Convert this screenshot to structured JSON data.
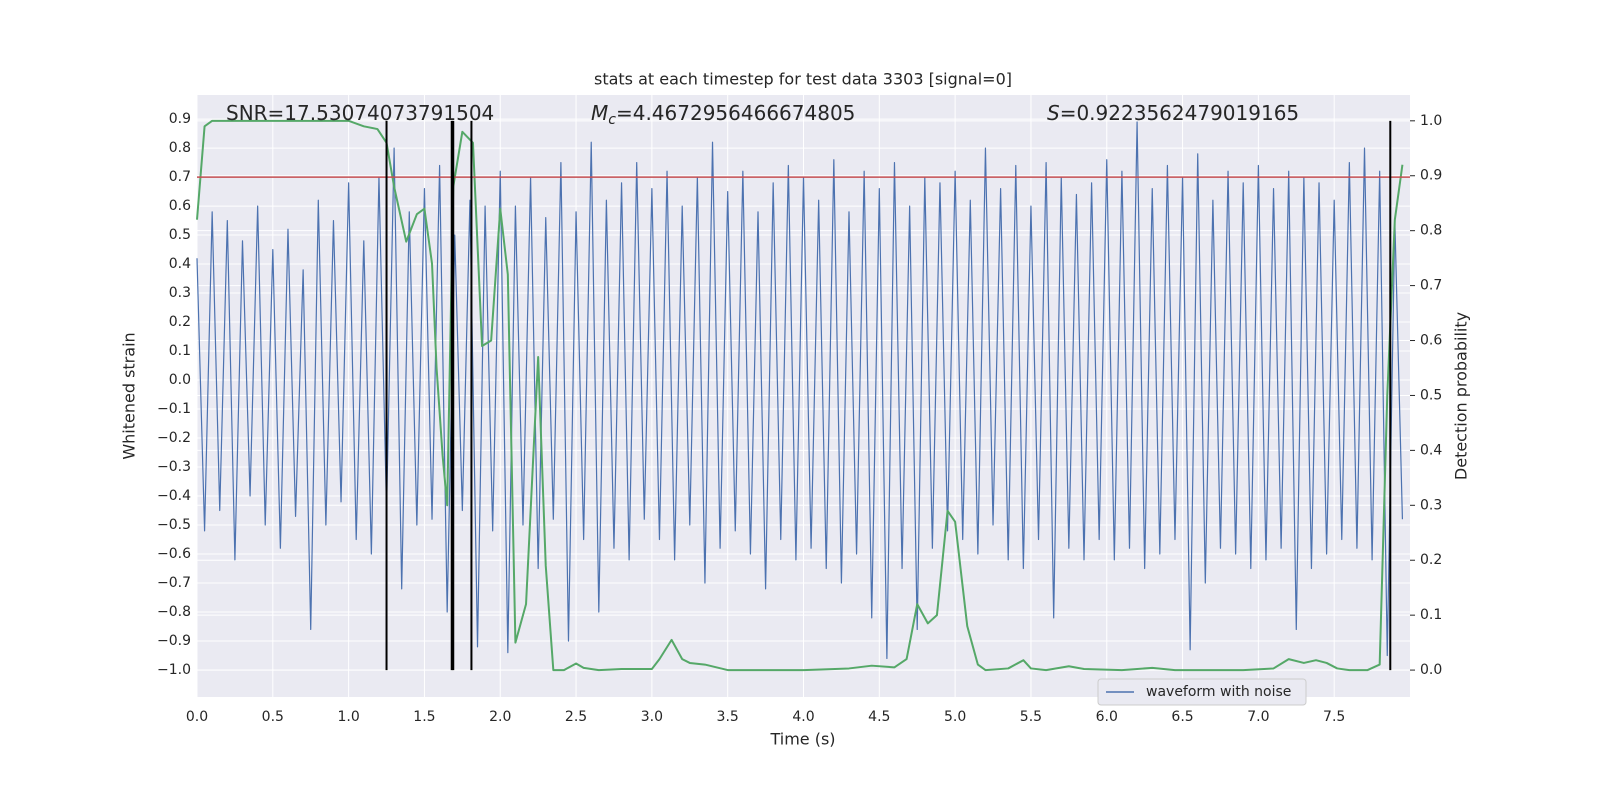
{
  "chart_data": {
    "type": "line",
    "title": "stats at each timestep for test data 3303 [signal=0]",
    "x_label": "Time (s)",
    "y_label": "Whitened strain",
    "y2_label": "Detection probability",
    "annotations": [
      {
        "text": "SNR=17.53074073791504"
      },
      {
        "symbol": "M",
        "subscript": "c",
        "text": "=4.4672956466674805"
      },
      {
        "symbol": "S",
        "text": "=0.9223562479019165"
      }
    ],
    "xlim": [
      0,
      8.0
    ],
    "ylim": [
      -1.093,
      0.983
    ],
    "y2lim": [
      -0.049,
      1.047
    ],
    "grid": true,
    "legend": "lower right",
    "xticks": [
      {
        "value": 0,
        "label": "0.0"
      },
      0.5,
      {
        "value": 1,
        "label": "1.0"
      },
      1.5,
      {
        "value": 2,
        "label": "2.0"
      },
      2.5,
      {
        "value": 3,
        "label": "3.0"
      },
      3.5,
      {
        "value": 4,
        "label": "4.0"
      },
      4.5,
      {
        "value": 5,
        "label": "5.0"
      },
      5.5,
      {
        "value": 6,
        "label": "6.0"
      },
      6.5,
      {
        "value": 7,
        "label": "7.0"
      },
      7.5
    ],
    "yticks": [
      0.9,
      0.8,
      0.7,
      0.6,
      0.5,
      0.4,
      0.3,
      0.2,
      0.1,
      {
        "value": 0,
        "label": "0.0"
      },
      {
        "value": -0.1,
        "label": "−0.1"
      },
      {
        "value": -0.2,
        "label": "−0.2"
      },
      {
        "value": -0.3,
        "label": "−0.3"
      },
      {
        "value": -0.4,
        "label": "−0.4"
      },
      {
        "value": -0.5,
        "label": "−0.5"
      },
      {
        "value": -0.6,
        "label": "−0.6"
      },
      {
        "value": -0.7,
        "label": "−0.7"
      },
      {
        "value": -0.8,
        "label": "−0.8"
      },
      {
        "value": -0.9,
        "label": "−0.9"
      },
      {
        "value": -1,
        "label": "−1.0"
      }
    ],
    "y2ticks": [
      {
        "value": 0,
        "label": "0.0"
      },
      0.1,
      0.2,
      0.3,
      0.4,
      0.5,
      0.6,
      0.7,
      0.8,
      0.9,
      {
        "value": 1,
        "label": "1.0"
      }
    ],
    "hlines": [
      {
        "value": 0.7,
        "color": "#c44e52"
      }
    ],
    "vlines": {
      "color": "#000000",
      "values": [
        1.25,
        1.68,
        1.69,
        1.81,
        7.87
      ],
      "from": 0,
      "to": 1.0
    },
    "series": [
      {
        "name": "waveform with noise",
        "color": "#4c72b0",
        "axis": "y",
        "x": [
          0.0,
          0.05,
          0.1,
          0.15,
          0.2,
          0.25,
          0.3,
          0.35,
          0.4,
          0.45,
          0.5,
          0.55,
          0.6,
          0.65,
          0.7,
          0.75,
          0.8,
          0.85,
          0.9,
          0.95,
          1.0,
          1.05,
          1.1,
          1.15,
          1.2,
          1.25,
          1.3,
          1.35,
          1.4,
          1.45,
          1.5,
          1.55,
          1.6,
          1.65,
          1.7,
          1.75,
          1.8,
          1.85,
          1.9,
          1.95,
          2.0,
          2.05,
          2.1,
          2.15,
          2.2,
          2.25,
          2.3,
          2.35,
          2.4,
          2.45,
          2.5,
          2.55,
          2.6,
          2.65,
          2.7,
          2.75,
          2.8,
          2.85,
          2.9,
          2.95,
          3.0,
          3.05,
          3.1,
          3.15,
          3.2,
          3.25,
          3.3,
          3.35,
          3.4,
          3.45,
          3.5,
          3.55,
          3.6,
          3.65,
          3.7,
          3.75,
          3.8,
          3.85,
          3.9,
          3.95,
          4.0,
          4.05,
          4.1,
          4.15,
          4.2,
          4.25,
          4.3,
          4.35,
          4.4,
          4.45,
          4.5,
          4.55,
          4.6,
          4.65,
          4.7,
          4.75,
          4.8,
          4.85,
          4.9,
          4.95,
          5.0,
          5.05,
          5.1,
          5.15,
          5.2,
          5.25,
          5.3,
          5.35,
          5.4,
          5.45,
          5.5,
          5.55,
          5.6,
          5.65,
          5.7,
          5.75,
          5.8,
          5.85,
          5.9,
          5.95,
          6.0,
          6.05,
          6.1,
          6.15,
          6.2,
          6.25,
          6.3,
          6.35,
          6.4,
          6.45,
          6.5,
          6.55,
          6.6,
          6.65,
          6.7,
          6.75,
          6.8,
          6.85,
          6.9,
          6.95,
          7.0,
          7.05,
          7.1,
          7.15,
          7.2,
          7.25,
          7.3,
          7.35,
          7.4,
          7.45,
          7.5,
          7.55,
          7.6,
          7.65,
          7.7,
          7.75,
          7.8,
          7.85,
          7.9,
          7.95
        ],
        "values": [
          0.42,
          -0.52,
          0.58,
          -0.45,
          0.55,
          -0.62,
          0.48,
          -0.4,
          0.6,
          -0.5,
          0.45,
          -0.58,
          0.52,
          -0.47,
          0.38,
          -0.86,
          0.62,
          -0.5,
          0.55,
          -0.42,
          0.68,
          -0.55,
          0.48,
          -0.6,
          0.7,
          -0.45,
          0.8,
          -0.72,
          0.58,
          -0.5,
          0.66,
          -0.48,
          0.74,
          -0.8,
          0.5,
          -0.45,
          0.62,
          -0.92,
          0.6,
          -0.52,
          0.72,
          -0.94,
          0.6,
          -0.5,
          0.7,
          -0.65,
          0.56,
          -0.48,
          0.75,
          -0.9,
          0.58,
          -0.55,
          0.82,
          -0.8,
          0.62,
          -0.58,
          0.68,
          -0.62,
          0.75,
          -0.48,
          0.66,
          -0.55,
          0.72,
          -0.62,
          0.6,
          -0.5,
          0.7,
          -0.7,
          0.82,
          -0.58,
          0.65,
          -0.52,
          0.72,
          -0.6,
          0.58,
          -0.72,
          0.68,
          -0.55,
          0.74,
          -0.62,
          0.7,
          -0.58,
          0.62,
          -0.65,
          0.76,
          -0.7,
          0.58,
          -0.6,
          0.72,
          -0.82,
          0.66,
          -0.96,
          0.75,
          -0.65,
          0.6,
          -0.86,
          0.7,
          -0.58,
          0.68,
          -0.52,
          0.72,
          -0.55,
          0.62,
          -0.6,
          0.8,
          -0.5,
          0.66,
          -0.62,
          0.74,
          -0.65,
          0.6,
          -0.55,
          0.75,
          -0.82,
          0.7,
          -0.58,
          0.64,
          -0.62,
          0.68,
          -0.55,
          0.76,
          -0.62,
          0.72,
          -0.58,
          0.89,
          -0.65,
          0.66,
          -0.6,
          0.74,
          -0.55,
          0.7,
          -0.93,
          0.78,
          -0.7,
          0.62,
          -0.58,
          0.72,
          -0.6,
          0.68,
          -0.65,
          0.74,
          -0.62,
          0.66,
          -0.58,
          0.72,
          -0.86,
          0.7,
          -0.65,
          0.68,
          -0.6,
          0.62,
          -0.55,
          0.75,
          -0.58,
          0.8,
          -0.62,
          0.72,
          -0.95,
          0.55,
          -0.48
        ]
      },
      {
        "color": "#55a868",
        "axis": "y2",
        "x": [
          0.0,
          0.05,
          0.1,
          0.3,
          0.6,
          0.9,
          1.0,
          1.1,
          1.19,
          1.25,
          1.3,
          1.38,
          1.45,
          1.5,
          1.55,
          1.58,
          1.62,
          1.65,
          1.69,
          1.75,
          1.82,
          1.88,
          1.94,
          2.0,
          2.05,
          2.1,
          2.17,
          2.25,
          2.3,
          2.35,
          2.42,
          2.5,
          2.55,
          2.65,
          2.8,
          3.0,
          3.05,
          3.13,
          3.2,
          3.25,
          3.35,
          3.5,
          3.8,
          4.0,
          4.3,
          4.45,
          4.6,
          4.68,
          4.75,
          4.82,
          4.88,
          4.95,
          5.0,
          5.08,
          5.15,
          5.2,
          5.35,
          5.45,
          5.5,
          5.6,
          5.75,
          5.85,
          6.1,
          6.3,
          6.45,
          6.7,
          6.9,
          7.1,
          7.2,
          7.3,
          7.38,
          7.45,
          7.52,
          7.6,
          7.72,
          7.8,
          7.85,
          7.9,
          7.95
        ],
        "values": [
          0.82,
          0.99,
          1.0,
          1.0,
          1.0,
          1.0,
          1.0,
          0.99,
          0.985,
          0.96,
          0.88,
          0.78,
          0.83,
          0.84,
          0.74,
          0.55,
          0.39,
          0.3,
          0.88,
          0.98,
          0.96,
          0.59,
          0.6,
          0.84,
          0.72,
          0.05,
          0.12,
          0.57,
          0.19,
          0.0,
          0.0,
          0.012,
          0.004,
          0.0,
          0.002,
          0.002,
          0.02,
          0.055,
          0.02,
          0.013,
          0.01,
          0.0,
          0.0,
          0.0,
          0.003,
          0.008,
          0.005,
          0.02,
          0.12,
          0.085,
          0.1,
          0.29,
          0.27,
          0.08,
          0.01,
          0.0,
          0.003,
          0.018,
          0.003,
          0.0,
          0.007,
          0.002,
          0.0,
          0.004,
          0.0,
          0.0,
          0.0,
          0.003,
          0.02,
          0.013,
          0.018,
          0.013,
          0.003,
          0.0,
          0.0,
          0.01,
          0.5,
          0.82,
          0.92
        ]
      }
    ]
  }
}
